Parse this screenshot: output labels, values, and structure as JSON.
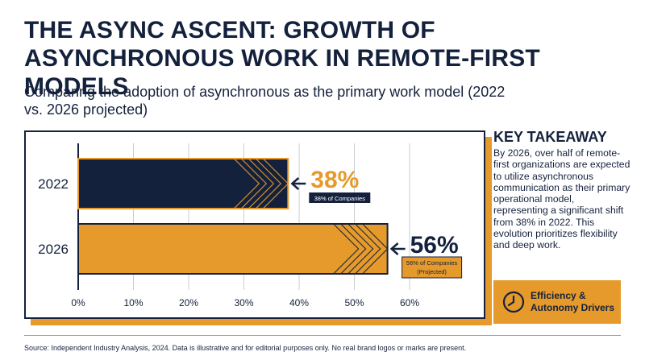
{
  "title": "THE ASYNC ASCENT: GROWTH OF ASYNCHRONOUS WORK IN REMOTE-FIRST MODELS",
  "subtitle": "Comparing the adoption of asynchronous as the primary work model (2022 vs. 2026 projected)",
  "chart_data": {
    "type": "bar",
    "orientation": "horizontal",
    "categories": [
      "2022",
      "2026"
    ],
    "values": [
      38,
      56
    ],
    "unit": "%",
    "xlim": [
      0,
      60
    ],
    "xticks": [
      "0%",
      "10%",
      "20%",
      "30%",
      "40%",
      "50%",
      "60%"
    ],
    "grid": true,
    "bar_colors": [
      "#14213d",
      "#e59a2b"
    ],
    "data_labels": [
      "38%",
      "56%"
    ],
    "annotations": [
      "38% of Companies",
      "56% of Companies (Projected)"
    ]
  },
  "takeaway": {
    "heading": "KEY TAKEAWAY",
    "text": "By 2026, over half of remote-first organizations are expected to utilize asynchronous communication as their primary operational model, representing a significant shift from 38% in 2022. This evolution prioritizes flexibility and deep work."
  },
  "driver": {
    "label": "Efficiency & Autonomy Drivers",
    "icon": "clock-icon"
  },
  "source": "Source: Independent Industry Analysis, 2024. Data is illustrative and for editorial purposes only. No real brand logos or marks are present.",
  "colors": {
    "navy": "#14213d",
    "accent": "#e59a2b"
  }
}
